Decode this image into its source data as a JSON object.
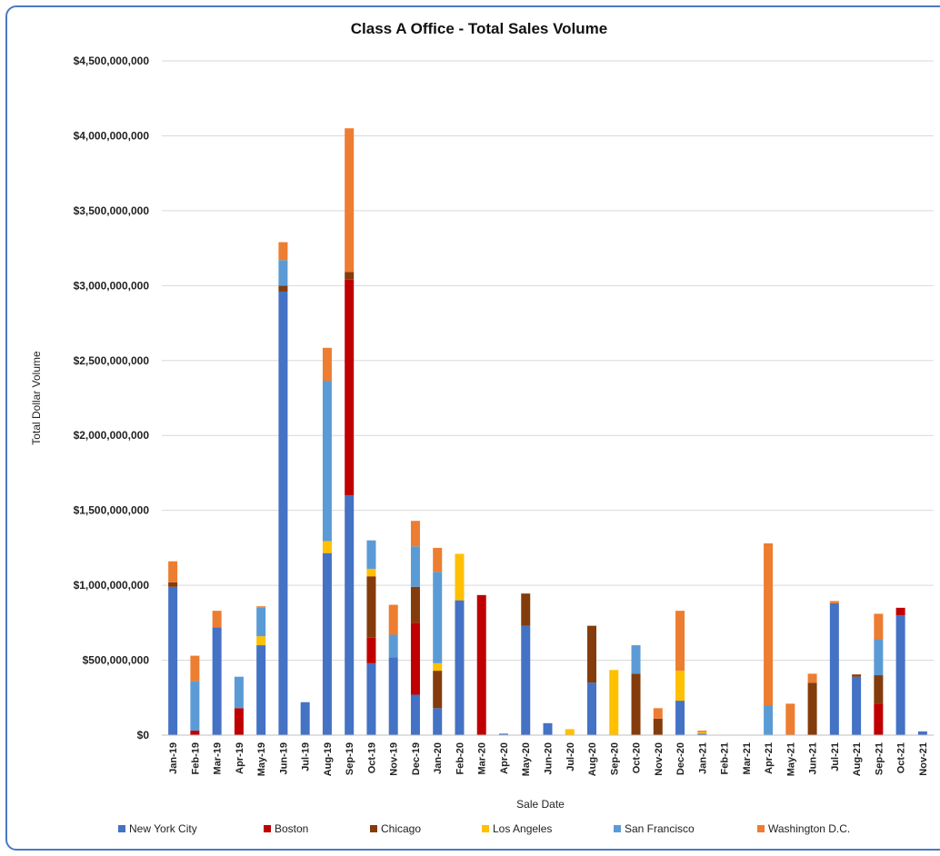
{
  "chart_data": {
    "type": "bar",
    "stacked": true,
    "title": "Class A Office - Total Sales Volume",
    "xlabel": "Sale Date",
    "ylabel": "Total Dollar Volume",
    "ylim": [
      0,
      4500000000
    ],
    "y_ticks": [
      0,
      500000000,
      1000000000,
      1500000000,
      2000000000,
      2500000000,
      3000000000,
      3500000000,
      4000000000,
      4500000000
    ],
    "y_tick_labels": [
      "$0",
      "$500,000,000",
      "$1,000,000,000",
      "$1,500,000,000",
      "$2,000,000,000",
      "$2,500,000,000",
      "$3,000,000,000",
      "$3,500,000,000",
      "$4,000,000,000",
      "$4,500,000,000"
    ],
    "grid": true,
    "legend_position": "bottom",
    "categories": [
      "Jan-19",
      "Feb-19",
      "Mar-19",
      "Apr-19",
      "May-19",
      "Jun-19",
      "Jul-19",
      "Aug-19",
      "Sep-19",
      "Oct-19",
      "Nov-19",
      "Dec-19",
      "Jan-20",
      "Feb-20",
      "Mar-20",
      "Apr-20",
      "May-20",
      "Jun-20",
      "Jul-20",
      "Aug-20",
      "Sep-20",
      "Oct-20",
      "Nov-20",
      "Dec-20",
      "Jan-21",
      "Feb-21",
      "Mar-21",
      "Apr-21",
      "May-21",
      "Jun-21",
      "Jul-21",
      "Aug-21",
      "Sep-21",
      "Oct-21",
      "Nov-21"
    ],
    "series": [
      {
        "name": "New York City",
        "color": "#4472c4",
        "values": [
          990000000,
          0,
          720000000,
          0,
          600000000,
          2960000000,
          220000000,
          1215000000,
          1600000000,
          480000000,
          520000000,
          270000000,
          180000000,
          900000000,
          0,
          10000000,
          730000000,
          80000000,
          0,
          350000000,
          0,
          0,
          0,
          230000000,
          10000000,
          0,
          0,
          0,
          0,
          0,
          880000000,
          390000000,
          0,
          800000000,
          25000000
        ]
      },
      {
        "name": "Boston",
        "color": "#c00000",
        "values": [
          0,
          30000000,
          0,
          180000000,
          0,
          0,
          0,
          0,
          1440000000,
          170000000,
          0,
          480000000,
          0,
          0,
          935000000,
          0,
          0,
          0,
          0,
          0,
          0,
          0,
          0,
          0,
          0,
          0,
          0,
          0,
          0,
          0,
          0,
          0,
          210000000,
          50000000,
          0
        ]
      },
      {
        "name": "Chicago",
        "color": "#843c0c",
        "values": [
          30000000,
          0,
          0,
          0,
          0,
          40000000,
          0,
          0,
          50000000,
          410000000,
          0,
          240000000,
          250000000,
          0,
          0,
          0,
          215000000,
          0,
          0,
          380000000,
          0,
          410000000,
          110000000,
          0,
          0,
          0,
          0,
          0,
          0,
          350000000,
          0,
          15000000,
          190000000,
          0,
          0
        ]
      },
      {
        "name": "Los Angeles",
        "color": "#ffc000",
        "values": [
          0,
          0,
          0,
          0,
          60000000,
          0,
          0,
          80000000,
          0,
          50000000,
          0,
          0,
          50000000,
          310000000,
          0,
          0,
          0,
          0,
          40000000,
          0,
          435000000,
          0,
          0,
          200000000,
          10000000,
          0,
          0,
          0,
          0,
          0,
          0,
          0,
          0,
          0,
          0
        ]
      },
      {
        "name": "San Francisco",
        "color": "#5b9bd5",
        "values": [
          0,
          330000000,
          0,
          210000000,
          190000000,
          170000000,
          0,
          1070000000,
          0,
          190000000,
          150000000,
          270000000,
          610000000,
          0,
          0,
          0,
          0,
          0,
          0,
          0,
          0,
          190000000,
          0,
          0,
          0,
          0,
          0,
          200000000,
          0,
          0,
          0,
          0,
          240000000,
          0,
          0
        ]
      },
      {
        "name": "Washington D.C.",
        "color": "#ed7d31",
        "values": [
          140000000,
          170000000,
          110000000,
          0,
          10000000,
          120000000,
          0,
          220000000,
          960000000,
          0,
          200000000,
          170000000,
          160000000,
          0,
          0,
          0,
          0,
          0,
          0,
          0,
          0,
          0,
          70000000,
          400000000,
          10000000,
          0,
          0,
          1080000000,
          210000000,
          60000000,
          15000000,
          0,
          170000000,
          0,
          0
        ]
      }
    ]
  }
}
